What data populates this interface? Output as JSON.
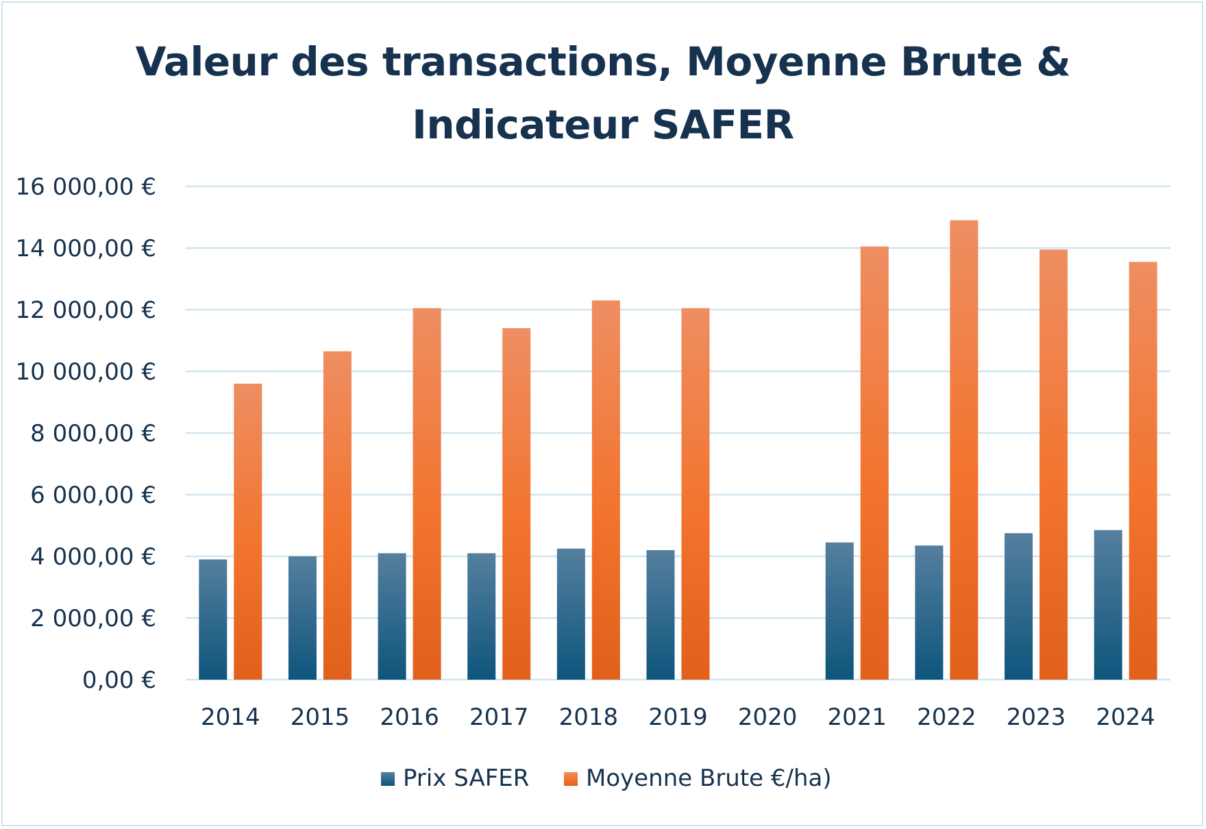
{
  "chart_data": {
    "type": "bar",
    "title_lines": [
      "Valeur des transactions, Moyenne Brute &",
      "Indicateur SAFER"
    ],
    "xlabel": "",
    "ylabel": "",
    "categories": [
      "2014",
      "2015",
      "2016",
      "2017",
      "2018",
      "2019",
      "2020",
      "2021",
      "2022",
      "2023",
      "2024"
    ],
    "series": [
      {
        "name": "Prix SAFER",
        "color": "#1a5f86",
        "values": [
          3900,
          4000,
          4100,
          4100,
          4250,
          4200,
          null,
          4450,
          4350,
          4750,
          4850
        ]
      },
      {
        "name": "Moyenne Brute €/ha)",
        "color": "#ee7433",
        "values": [
          9600,
          10650,
          12050,
          11400,
          12300,
          12050,
          null,
          14050,
          14900,
          13950,
          13550
        ]
      }
    ],
    "ylim": [
      0,
      16000
    ],
    "yticks": [
      {
        "value": 0,
        "label": "0,00 €"
      },
      {
        "value": 2000,
        "label": "2 000,00 €"
      },
      {
        "value": 4000,
        "label": "4 000,00 €"
      },
      {
        "value": 6000,
        "label": "6 000,00 €"
      },
      {
        "value": 8000,
        "label": "8 000,00 €"
      },
      {
        "value": 10000,
        "label": "10 000,00 €"
      },
      {
        "value": 12000,
        "label": "12 000,00 €"
      },
      {
        "value": 14000,
        "label": "14 000,00 €"
      },
      {
        "value": 16000,
        "label": "16 000,00 €"
      }
    ],
    "grid": true,
    "legend_position": "bottom"
  }
}
